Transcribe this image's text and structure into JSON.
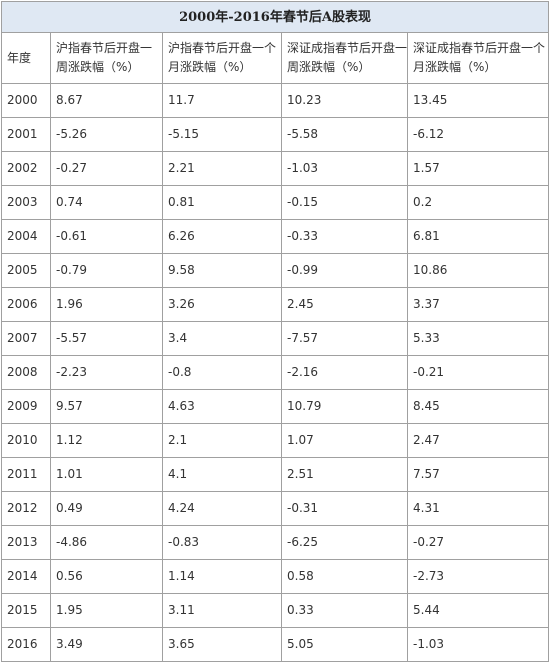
{
  "table": {
    "title": "2000年-2016年春节后A股表现",
    "headers": [
      "年度",
      "沪指春节后开盘一周涨跌幅（%）",
      "沪指春节后开盘一个月涨跌幅（%）",
      "深证成指春节后开盘一周涨跌幅（%）",
      "深证成指春节后开盘一个月涨跌幅（%）"
    ],
    "rows": [
      [
        "2000",
        "8.67",
        "11.7",
        "10.23",
        "13.45"
      ],
      [
        "2001",
        "-5.26",
        "-5.15",
        "-5.58",
        "-6.12"
      ],
      [
        "2002",
        "-0.27",
        "2.21",
        "-1.03",
        "1.57"
      ],
      [
        "2003",
        "0.74",
        "0.81",
        "-0.15",
        "0.2"
      ],
      [
        "2004",
        "-0.61",
        "6.26",
        "-0.33",
        "6.81"
      ],
      [
        "2005",
        "-0.79",
        "9.58",
        "-0.99",
        "10.86"
      ],
      [
        "2006",
        "1.96",
        "3.26",
        "2.45",
        "3.37"
      ],
      [
        "2007",
        "-5.57",
        "3.4",
        "-7.57",
        "5.33"
      ],
      [
        "2008",
        "-2.23",
        "-0.8",
        "-2.16",
        "-0.21"
      ],
      [
        "2009",
        "9.57",
        "4.63",
        "10.79",
        "8.45"
      ],
      [
        "2010",
        "1.12",
        "2.1",
        "1.07",
        "2.47"
      ],
      [
        "2011",
        "1.01",
        "4.1",
        "2.51",
        "7.57"
      ],
      [
        "2012",
        "0.49",
        "4.24",
        "-0.31",
        "4.31"
      ],
      [
        "2013",
        "-4.86",
        "-0.83",
        "-6.25",
        "-0.27"
      ],
      [
        "2014",
        "0.56",
        "1.14",
        "0.58",
        "-2.73"
      ],
      [
        "2015",
        "1.95",
        "3.11",
        "0.33",
        "5.44"
      ],
      [
        "2016",
        "3.49",
        "3.65",
        "5.05",
        "-1.03"
      ]
    ]
  },
  "colors": {
    "title_background": "#dfe8f3",
    "border": "#a0a0a0",
    "text": "#333333"
  }
}
